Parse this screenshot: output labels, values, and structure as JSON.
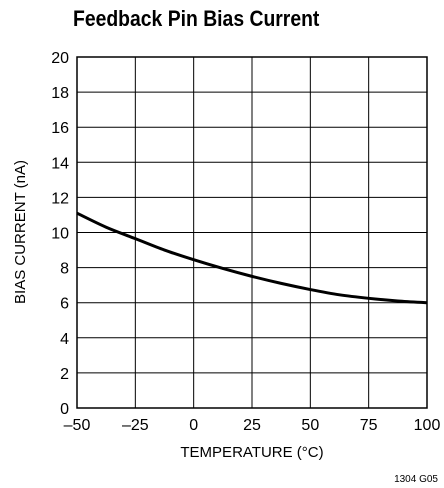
{
  "chart_data": {
    "type": "line",
    "title": "Feedback Pin Bias Current",
    "xlabel": "TEMPERATURE (°C)",
    "ylabel": "BIAS CURRENT (nA)",
    "xlim": [
      -50,
      100
    ],
    "ylim": [
      0,
      20
    ],
    "xticks": [
      -50,
      -25,
      0,
      25,
      50,
      75,
      100
    ],
    "yticks": [
      0,
      2,
      4,
      6,
      8,
      10,
      12,
      14,
      16,
      18,
      20
    ],
    "xtick_labels": [
      "–50",
      "–25",
      "0",
      "25",
      "50",
      "75",
      "100"
    ],
    "ytick_labels": [
      "0",
      "2",
      "4",
      "6",
      "8",
      "10",
      "12",
      "14",
      "16",
      "18",
      "20"
    ],
    "grid": true,
    "series": [
      {
        "x": [
          -50,
          -37.5,
          -25,
          -12.5,
          0,
          12.5,
          25,
          37.5,
          50,
          62.5,
          75,
          87.5,
          100
        ],
        "values": [
          11.1,
          10.3,
          9.65,
          9.0,
          8.45,
          7.95,
          7.5,
          7.1,
          6.75,
          6.45,
          6.25,
          6.1,
          6.0
        ]
      }
    ],
    "figure_id": "1304 G05"
  }
}
